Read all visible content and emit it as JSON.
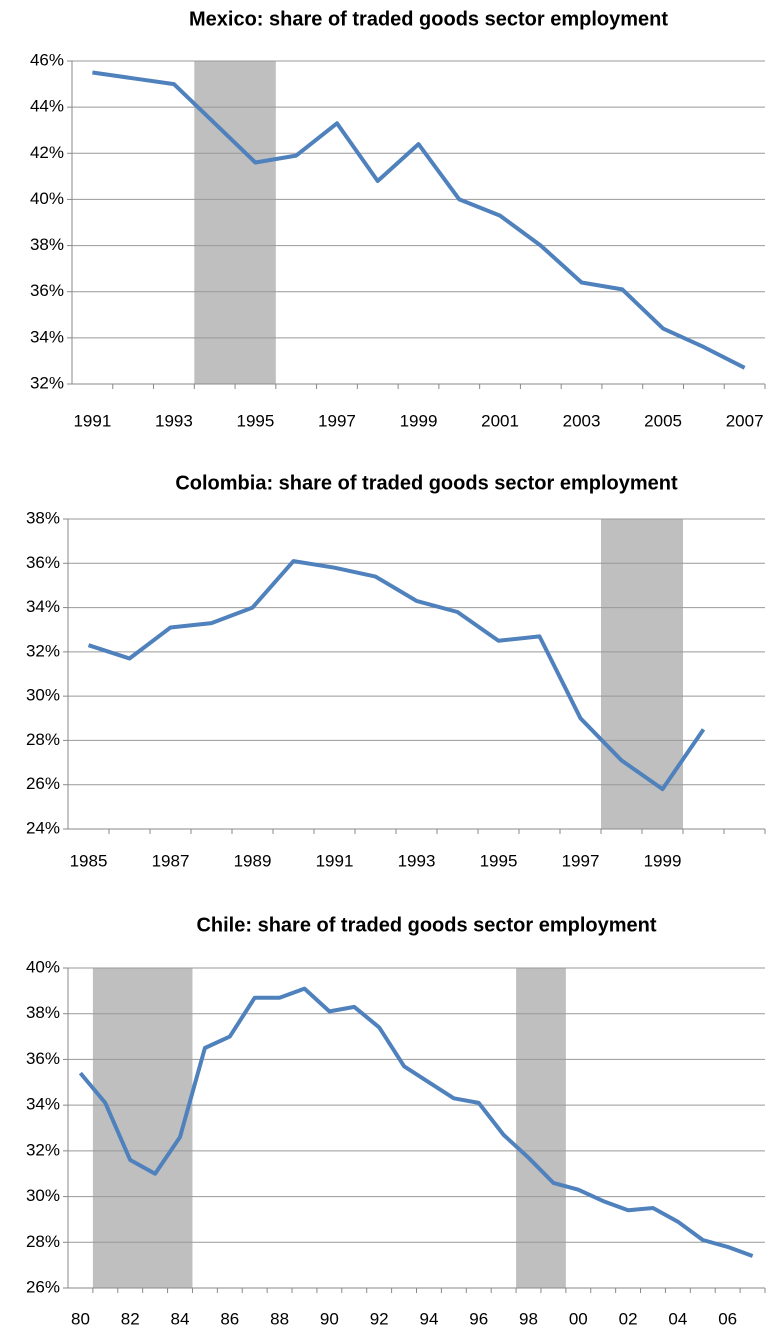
{
  "chart_data": [
    {
      "type": "line",
      "title": "Mexico: share of traded goods sector employment",
      "categories": [
        "1991",
        null,
        "1993",
        null,
        "1995",
        null,
        "1997",
        null,
        "1999",
        null,
        "2001",
        null,
        "2003",
        null,
        "2005",
        null,
        "2007"
      ],
      "values": [
        45.5,
        45.25,
        45.0,
        43.3,
        41.6,
        41.9,
        43.3,
        40.8,
        42.4,
        40.0,
        39.3,
        38.0,
        36.4,
        36.1,
        34.4,
        33.6,
        32.7
      ],
      "color": "#4f81bd",
      "shade_color": "#bfbfbf",
      "shaded": [
        [
          3,
          4
        ]
      ],
      "ylim": [
        32,
        46
      ],
      "yticks": [
        {
          "value": 32,
          "label": "32%"
        },
        {
          "value": 34,
          "label": "34%"
        },
        {
          "value": 36,
          "label": "36%"
        },
        {
          "value": 38,
          "label": "38%"
        },
        {
          "value": 40,
          "label": "40%"
        },
        {
          "value": 42,
          "label": "42%"
        },
        {
          "value": 44,
          "label": "44%"
        },
        {
          "value": 46,
          "label": "46%"
        }
      ],
      "grid": true
    },
    {
      "type": "line",
      "title": "Colombia: share of traded goods sector employment",
      "categories": [
        "1985",
        null,
        "1987",
        null,
        "1989",
        null,
        "1991",
        null,
        "1993",
        null,
        "1995",
        null,
        "1997",
        null,
        "1999",
        null,
        null
      ],
      "values": [
        32.3,
        31.7,
        33.1,
        33.3,
        34.0,
        36.1,
        35.8,
        35.4,
        34.3,
        33.8,
        32.5,
        32.7,
        29.0,
        27.1,
        25.8,
        28.5,
        null
      ],
      "color": "#4f81bd",
      "shade_color": "#bfbfbf",
      "shaded": [
        [
          13,
          14
        ]
      ],
      "ylim": [
        24,
        38
      ],
      "yticks": [
        {
          "value": 24,
          "label": "24%"
        },
        {
          "value": 26,
          "label": "26%"
        },
        {
          "value": 28,
          "label": "28%"
        },
        {
          "value": 30,
          "label": "30%"
        },
        {
          "value": 32,
          "label": "32%"
        },
        {
          "value": 34,
          "label": "34%"
        },
        {
          "value": 36,
          "label": "36%"
        },
        {
          "value": 38,
          "label": "38%"
        }
      ],
      "grid": true
    },
    {
      "type": "line",
      "title": "Chile: share of traded goods sector employment",
      "categories": [
        "80",
        null,
        "82",
        null,
        "84",
        null,
        "86",
        null,
        "88",
        null,
        "90",
        null,
        "92",
        null,
        "94",
        null,
        "96",
        null,
        "98",
        null,
        "00",
        null,
        "02",
        null,
        "04",
        null,
        "06",
        null
      ],
      "values": [
        35.4,
        34.1,
        31.6,
        31.0,
        32.6,
        36.5,
        37.0,
        38.7,
        38.7,
        39.1,
        38.1,
        38.3,
        37.4,
        35.7,
        35.0,
        34.3,
        34.1,
        32.7,
        31.7,
        30.6,
        30.3,
        29.8,
        29.4,
        29.5,
        28.9,
        28.1,
        27.8,
        27.4
      ],
      "color": "#4f81bd",
      "shade_color": "#bfbfbf",
      "shaded": [
        [
          1,
          4
        ],
        [
          18,
          19
        ]
      ],
      "ylim": [
        26,
        40
      ],
      "yticks": [
        {
          "value": 26,
          "label": "26%"
        },
        {
          "value": 28,
          "label": "28%"
        },
        {
          "value": 30,
          "label": "30%"
        },
        {
          "value": 32,
          "label": "32%"
        },
        {
          "value": 34,
          "label": "34%"
        },
        {
          "value": 36,
          "label": "36%"
        },
        {
          "value": 38,
          "label": "38%"
        },
        {
          "value": 40,
          "label": "40%"
        }
      ],
      "grid": true
    }
  ]
}
